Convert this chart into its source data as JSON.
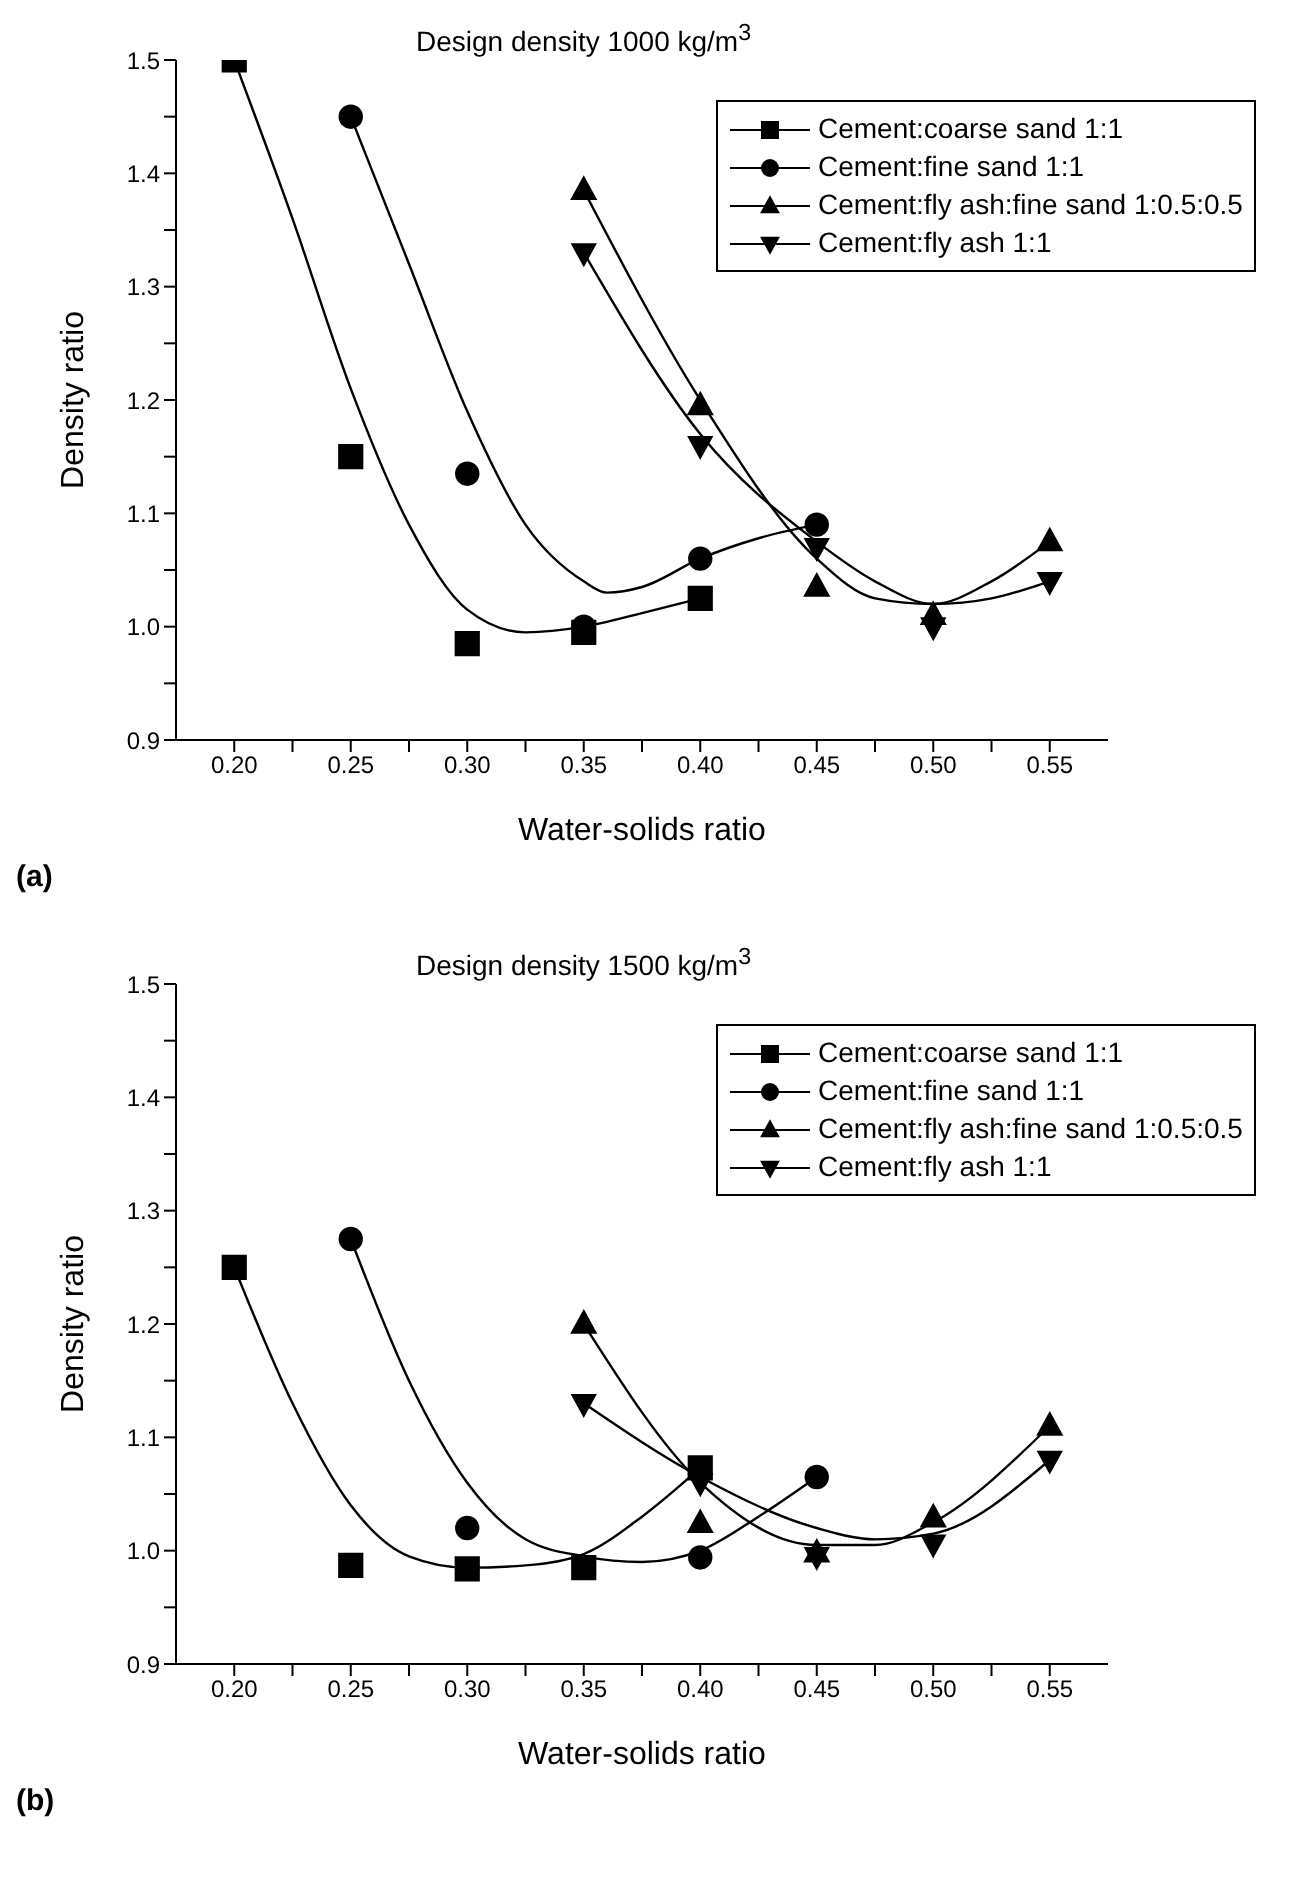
{
  "chart_data": [
    {
      "type": "scatter",
      "title": "Design density 1000 kg/m$^{3}$",
      "xlabel": "Water-solids ratio",
      "ylabel": "Density ratio",
      "annotations": [
        "(a)"
      ],
      "xlim": [
        0.175,
        0.575
      ],
      "ylim": [
        0.9,
        1.5
      ],
      "xticks": [
        {
          "value": 0.2,
          "label": "0.20"
        },
        {
          "value": 0.225,
          "label": null
        },
        {
          "value": 0.25,
          "label": "0.25"
        },
        {
          "value": 0.275,
          "label": null
        },
        {
          "value": 0.3,
          "label": "0.30"
        },
        {
          "value": 0.325,
          "label": null
        },
        {
          "value": 0.35,
          "label": "0.35"
        },
        {
          "value": 0.375,
          "label": null
        },
        {
          "value": 0.4,
          "label": "0.40"
        },
        {
          "value": 0.425,
          "label": null
        },
        {
          "value": 0.45,
          "label": "0.45"
        },
        {
          "value": 0.475,
          "label": null
        },
        {
          "value": 0.5,
          "label": "0.50"
        },
        {
          "value": 0.525,
          "label": null
        },
        {
          "value": 0.55,
          "label": "0.55"
        }
      ],
      "yticks": [
        {
          "value": 0.9,
          "label": "0.9"
        },
        {
          "value": 0.95,
          "label": null
        },
        {
          "value": 1.0,
          "label": "1.0"
        },
        {
          "value": 1.05,
          "label": null
        },
        {
          "value": 1.1,
          "label": "1.1"
        },
        {
          "value": 1.15,
          "label": null
        },
        {
          "value": 1.2,
          "label": "1.2"
        },
        {
          "value": 1.25,
          "label": null
        },
        {
          "value": 1.3,
          "label": "1.3"
        },
        {
          "value": 1.35,
          "label": null
        },
        {
          "value": 1.4,
          "label": "1.4"
        },
        {
          "value": 1.45,
          "label": null
        },
        {
          "value": 1.5,
          "label": "1.5"
        }
      ],
      "grid": false,
      "legend": "top right",
      "series": [
        {
          "name": "Cement:coarse sand  1:1",
          "color": "#000000",
          "marker": "square",
          "x": [
            0.2,
            0.25,
            0.3,
            0.35,
            0.4
          ],
          "values": [
            1.5,
            1.15,
            0.985,
            0.995,
            1.025
          ]
        },
        {
          "name": "Cement:fine sand 1:1",
          "color": "#000000",
          "marker": "circle",
          "x": [
            0.25,
            0.3,
            0.35,
            0.4,
            0.45
          ],
          "values": [
            1.45,
            1.135,
            1.0,
            1.06,
            1.09
          ]
        },
        {
          "name": "Cement:fly ash:fine sand 1:0.5:0.5",
          "color": "#000000",
          "marker": "triangle",
          "x": [
            0.35,
            0.4,
            0.45,
            0.5,
            0.55
          ],
          "values": [
            1.385,
            1.195,
            1.035,
            1.01,
            1.075
          ]
        },
        {
          "name": "Cement:fly ash 1:1",
          "color": "#000000",
          "marker": "triangle-down",
          "x": [
            0.35,
            0.4,
            0.45,
            0.5,
            0.55
          ],
          "values": [
            1.33,
            1.16,
            1.07,
            1.0,
            1.04
          ]
        },
        {
          "type": "line",
          "color": "#000000",
          "x": [
            0.2,
            0.225,
            0.25,
            0.275,
            0.3,
            0.325,
            0.35,
            0.375,
            0.4
          ],
          "values": [
            1.5,
            1.36,
            1.21,
            1.09,
            1.015,
            0.995,
            1.0,
            1.012,
            1.025
          ]
        },
        {
          "type": "line",
          "color": "#000000",
          "x": [
            0.25,
            0.275,
            0.3,
            0.325,
            0.35,
            0.36,
            0.375,
            0.4,
            0.425,
            0.45
          ],
          "values": [
            1.45,
            1.32,
            1.19,
            1.09,
            1.04,
            1.03,
            1.035,
            1.06,
            1.078,
            1.09
          ]
        },
        {
          "type": "line",
          "color": "#000000",
          "x": [
            0.35,
            0.4,
            0.45,
            0.475,
            0.5,
            0.525,
            0.55
          ],
          "values": [
            1.385,
            1.2,
            1.06,
            1.025,
            1.02,
            1.04,
            1.075
          ]
        },
        {
          "type": "line",
          "color": "#000000",
          "x": [
            0.35,
            0.4,
            0.45,
            0.475,
            0.5,
            0.525,
            0.55
          ],
          "values": [
            1.33,
            1.17,
            1.075,
            1.04,
            1.02,
            1.025,
            1.04
          ]
        }
      ]
    },
    {
      "type": "scatter",
      "title": "Design density 1500 kg/m$^{3}$",
      "xlabel": "Water-solids ratio",
      "ylabel": "Density ratio",
      "annotations": [
        "(b)"
      ],
      "xlim": [
        0.175,
        0.575
      ],
      "ylim": [
        0.9,
        1.5
      ],
      "xticks": [
        {
          "value": 0.2,
          "label": "0.20"
        },
        {
          "value": 0.225,
          "label": null
        },
        {
          "value": 0.25,
          "label": "0.25"
        },
        {
          "value": 0.275,
          "label": null
        },
        {
          "value": 0.3,
          "label": "0.30"
        },
        {
          "value": 0.325,
          "label": null
        },
        {
          "value": 0.35,
          "label": "0.35"
        },
        {
          "value": 0.375,
          "label": null
        },
        {
          "value": 0.4,
          "label": "0.40"
        },
        {
          "value": 0.425,
          "label": null
        },
        {
          "value": 0.45,
          "label": "0.45"
        },
        {
          "value": 0.475,
          "label": null
        },
        {
          "value": 0.5,
          "label": "0.50"
        },
        {
          "value": 0.525,
          "label": null
        },
        {
          "value": 0.55,
          "label": "0.55"
        }
      ],
      "yticks": [
        {
          "value": 0.9,
          "label": "0.9"
        },
        {
          "value": 0.95,
          "label": null
        },
        {
          "value": 1.0,
          "label": "1.0"
        },
        {
          "value": 1.05,
          "label": null
        },
        {
          "value": 1.1,
          "label": "1.1"
        },
        {
          "value": 1.15,
          "label": null
        },
        {
          "value": 1.2,
          "label": "1.2"
        },
        {
          "value": 1.25,
          "label": null
        },
        {
          "value": 1.3,
          "label": "1.3"
        },
        {
          "value": 1.35,
          "label": null
        },
        {
          "value": 1.4,
          "label": "1.4"
        },
        {
          "value": 1.45,
          "label": null
        },
        {
          "value": 1.5,
          "label": "1.5"
        }
      ],
      "grid": false,
      "legend": "top right",
      "series": [
        {
          "name": "Cement:coarse sand  1:1",
          "color": "#000000",
          "marker": "square",
          "x": [
            0.2,
            0.25,
            0.3,
            0.35,
            0.4
          ],
          "values": [
            1.25,
            0.987,
            0.984,
            0.985,
            1.073
          ]
        },
        {
          "name": "Cement:fine sand 1:1",
          "color": "#000000",
          "marker": "circle",
          "x": [
            0.25,
            0.3,
            0.4,
            0.45
          ],
          "values": [
            1.275,
            1.02,
            0.994,
            1.065
          ]
        },
        {
          "name": "Cement:fly ash:fine sand 1:0.5:0.5",
          "color": "#000000",
          "marker": "triangle",
          "x": [
            0.35,
            0.4,
            0.45,
            0.5,
            0.55
          ],
          "values": [
            1.2,
            1.024,
            0.998,
            1.029,
            1.11
          ]
        },
        {
          "name": "Cement:fly ash 1:1",
          "color": "#000000",
          "marker": "triangle-down",
          "x": [
            0.35,
            0.4,
            0.45,
            0.5,
            0.55
          ],
          "values": [
            1.13,
            1.06,
            0.995,
            1.006,
            1.08
          ]
        },
        {
          "type": "line",
          "color": "#000000",
          "x": [
            0.2,
            0.225,
            0.25,
            0.275,
            0.3,
            0.325,
            0.35,
            0.375,
            0.4
          ],
          "values": [
            1.25,
            1.13,
            1.04,
            0.995,
            0.985,
            0.987,
            0.997,
            1.03,
            1.073
          ]
        },
        {
          "type": "line",
          "color": "#000000",
          "x": [
            0.25,
            0.275,
            0.3,
            0.325,
            0.35,
            0.375,
            0.4,
            0.425,
            0.45
          ],
          "values": [
            1.275,
            1.15,
            1.06,
            1.01,
            0.995,
            0.99,
            1.0,
            1.03,
            1.065
          ]
        },
        {
          "type": "line",
          "color": "#000000",
          "x": [
            0.35,
            0.4,
            0.45,
            0.475,
            0.5,
            0.55
          ],
          "values": [
            1.2,
            1.06,
            1.005,
            1.005,
            1.025,
            1.11
          ]
        },
        {
          "type": "line",
          "color": "#000000",
          "x": [
            0.35,
            0.4,
            0.45,
            0.475,
            0.5,
            0.55
          ],
          "values": [
            1.13,
            1.065,
            1.02,
            1.01,
            1.015,
            1.08
          ]
        }
      ]
    }
  ]
}
